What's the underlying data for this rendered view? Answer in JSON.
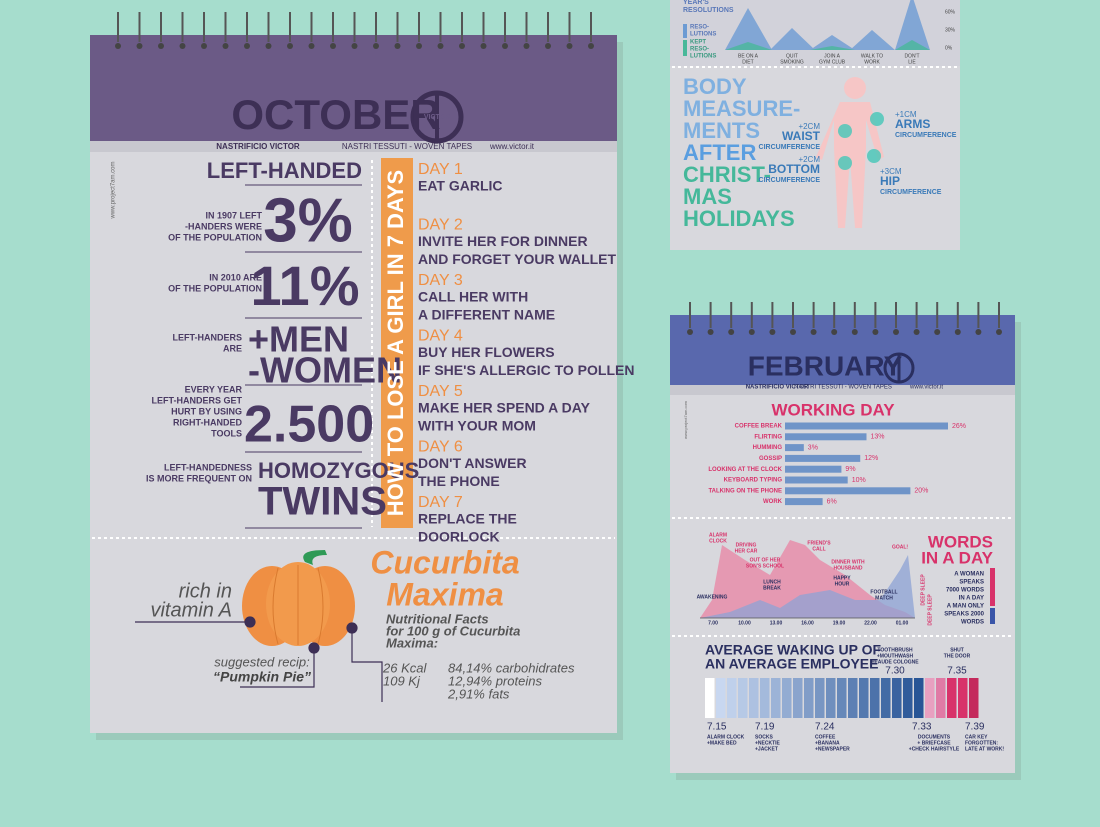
{
  "october": {
    "title": "OCTOBER",
    "logo": "VICTOR",
    "brand": "NASTRIFICIO VICTOR",
    "tagline": "NASTRI TESSUTI - WOVEN TAPES",
    "url": "www.victor.it",
    "side_url": "www.project7am.com",
    "left_handed": {
      "title": "LEFT-HANDED",
      "facts": [
        {
          "note": [
            "IN 1907 LEFT",
            "-HANDERS WERE",
            "OF THE POPULATION"
          ],
          "big": [
            "3%"
          ]
        },
        {
          "note": [
            "IN 2010 ARE",
            "OF THE POPULATION"
          ],
          "big": [
            "11%"
          ]
        },
        {
          "note": [
            "LEFT-HANDERS",
            "ARE"
          ],
          "big": [
            "+MEN",
            "-WOMEN"
          ]
        },
        {
          "note": [
            "EVERY YEAR",
            "LEFT-HANDERS GET",
            "HURT BY USING",
            "RIGHT-HANDED",
            "TOOLS"
          ],
          "big": [
            "2.500"
          ]
        },
        {
          "note": [
            "LEFT-HANDEDNESS",
            "IS MORE FREQUENT ON"
          ],
          "big": [
            "HOMOZYGOUS",
            "TWINS"
          ]
        }
      ]
    },
    "girl": {
      "title": "HOW TO LOSE A GIRL IN 7 DAYS",
      "days": [
        {
          "day": "DAY 1",
          "text": [
            "EAT GARLIC"
          ]
        },
        {
          "day": "DAY 2",
          "text": [
            "INVITE HER FOR DINNER",
            "AND FORGET YOUR WALLET"
          ]
        },
        {
          "day": "DAY 3",
          "text": [
            "CALL HER WITH",
            "A DIFFERENT NAME"
          ]
        },
        {
          "day": "DAY 4",
          "text": [
            "BUY HER FLOWERS",
            "IF SHE'S ALLERGIC TO POLLEN"
          ]
        },
        {
          "day": "DAY 5",
          "text": [
            "MAKE HER SPEND A DAY",
            "WITH YOUR MOM"
          ]
        },
        {
          "day": "DAY 6",
          "text": [
            "DON'T ANSWER",
            "THE PHONE"
          ]
        },
        {
          "day": "DAY 7",
          "text": [
            "REPLACE THE",
            "DOORLOCK"
          ]
        }
      ]
    },
    "pumpkin": {
      "name": [
        "Cucurbita",
        "Maxima"
      ],
      "rich": [
        "rich in",
        "vitamin A"
      ],
      "recipe_label": "suggested recip:",
      "recipe": "“Pumpkin Pie”",
      "facts_title": [
        "Nutritional Facts",
        "for 100 g of Cucurbita",
        "Maxima:"
      ],
      "energy": [
        "26 Kcal",
        "109 Kj"
      ],
      "nutrients": [
        "84,14% carbohidrates",
        "12,94% proteins",
        "2,91% fats"
      ]
    }
  },
  "resolutions": {
    "title": [
      "YEAR'S",
      "RESOLUTIONS"
    ],
    "legend": [
      [
        "RESO-",
        "LUTIONS"
      ],
      [
        "KEPT",
        "RESO-",
        "LUTIONS"
      ]
    ],
    "categories": [
      [
        "BE ON A",
        "DIET"
      ],
      [
        "QUIT",
        "SMOKING"
      ],
      [
        "JOIN A",
        "GYM CLUB"
      ],
      [
        "WALK TO",
        "WORK"
      ],
      [
        "DON'T",
        "LIE"
      ]
    ],
    "ticks": [
      "60%",
      "30%",
      "0%"
    ]
  },
  "body": {
    "title": [
      "BODY",
      "MEASURE-",
      "MENTS",
      "AFTER",
      "CHRIST-",
      "MAS",
      "HOLIDAYS"
    ],
    "notes": [
      {
        "delta": "+2CM",
        "part": "WAIST",
        "label": "CIRCUMFERENCE"
      },
      {
        "delta": "+2CM",
        "part": "BOTTOM",
        "label": "CIRCUMFERENCE"
      },
      {
        "delta": "+1CM",
        "part": "ARMS",
        "label": "CIRCUMFERENCE"
      },
      {
        "delta": "+3CM",
        "part": "HIP",
        "label": "CIRCUMFERENCE"
      }
    ]
  },
  "february": {
    "title": "FEBRUARY",
    "brand": "NASTRIFICIO VICTOR",
    "tagline": "NASTRI TESSUTI - WOVEN TAPES",
    "url": "www.victor.it",
    "side_url": "www.project7am.com",
    "working_day": {
      "title": "WORKING DAY",
      "categories": [
        "COFFEE BREAK",
        "FLIRTING",
        "HUMMING",
        "GOSSIP",
        "LOOKING AT THE CLOCK",
        "KEYBOARD TYPING",
        "TALKING ON THE PHONE",
        "WORK"
      ],
      "values": [
        26,
        13,
        3,
        12,
        9,
        10,
        20,
        6
      ],
      "value_labels": [
        "26%",
        "13%",
        "3%",
        "12%",
        "9%",
        "10%",
        "20%",
        "6%"
      ]
    },
    "day_chart": {
      "events": [
        [
          "ALARM",
          "CLOCK"
        ],
        [
          "DRIVING",
          "HER CAR"
        ],
        [
          "OUT OF HER",
          "SON'S SCHOOL"
        ],
        [
          "FRIEND'S",
          "CALL"
        ],
        [
          "DINNER WITH",
          "HOUSBAND"
        ],
        [
          "GOAL!"
        ],
        [
          "LUNCH",
          "BREAK"
        ],
        [
          "HAPPY",
          "HOUR"
        ],
        [
          "AWAKENING"
        ],
        [
          "FOOTBALL",
          "MATCH"
        ],
        [
          "DEEP SLEEP"
        ],
        [
          "DEEP SLEEP"
        ]
      ],
      "times": [
        "7.00",
        "10.00",
        "13.00",
        "16.00",
        "19.00",
        "22.00",
        "01.00"
      ]
    },
    "words": {
      "title": [
        "WORDS",
        "IN A DAY"
      ],
      "woman": [
        "A WOMAN",
        "SPEAKS",
        "7000 WORDS",
        "IN A DAY"
      ],
      "man": [
        "A MAN ONLY",
        "SPEAKS 2000",
        "WORDS"
      ]
    },
    "waking": {
      "title": [
        "AVERAGE WAKING UP OF",
        "AN AVERAGE EMPLOYEE"
      ],
      "below": [
        {
          "time": "7.15",
          "text": [
            "ALARM CLOCK",
            "+MAKE BED"
          ]
        },
        {
          "time": "7.19",
          "text": [
            "SOCKS",
            "+NECKTIE",
            "+JACKET"
          ]
        },
        {
          "time": "7.24",
          "text": [
            "COFFEE",
            "+BANANA",
            "+NEWSPAPER"
          ]
        },
        {
          "time": "7.33",
          "text": [
            "DOCUMENTS",
            "+ BRIEFCASE",
            "+CHECK HAIRSTYLE"
          ]
        },
        {
          "time": "7.39",
          "text": [
            "CAR KEY",
            "FORGOTTEN:",
            "LATE AT WORK!"
          ]
        }
      ],
      "above": [
        {
          "time": "7.30",
          "text": [
            "TOOTHBRUSH",
            "+MOUTHWASH",
            "+EAUDE COLOGNE"
          ]
        },
        {
          "time": "7.35",
          "text": [
            "SHUT",
            "THE DOOR"
          ]
        }
      ]
    }
  }
}
